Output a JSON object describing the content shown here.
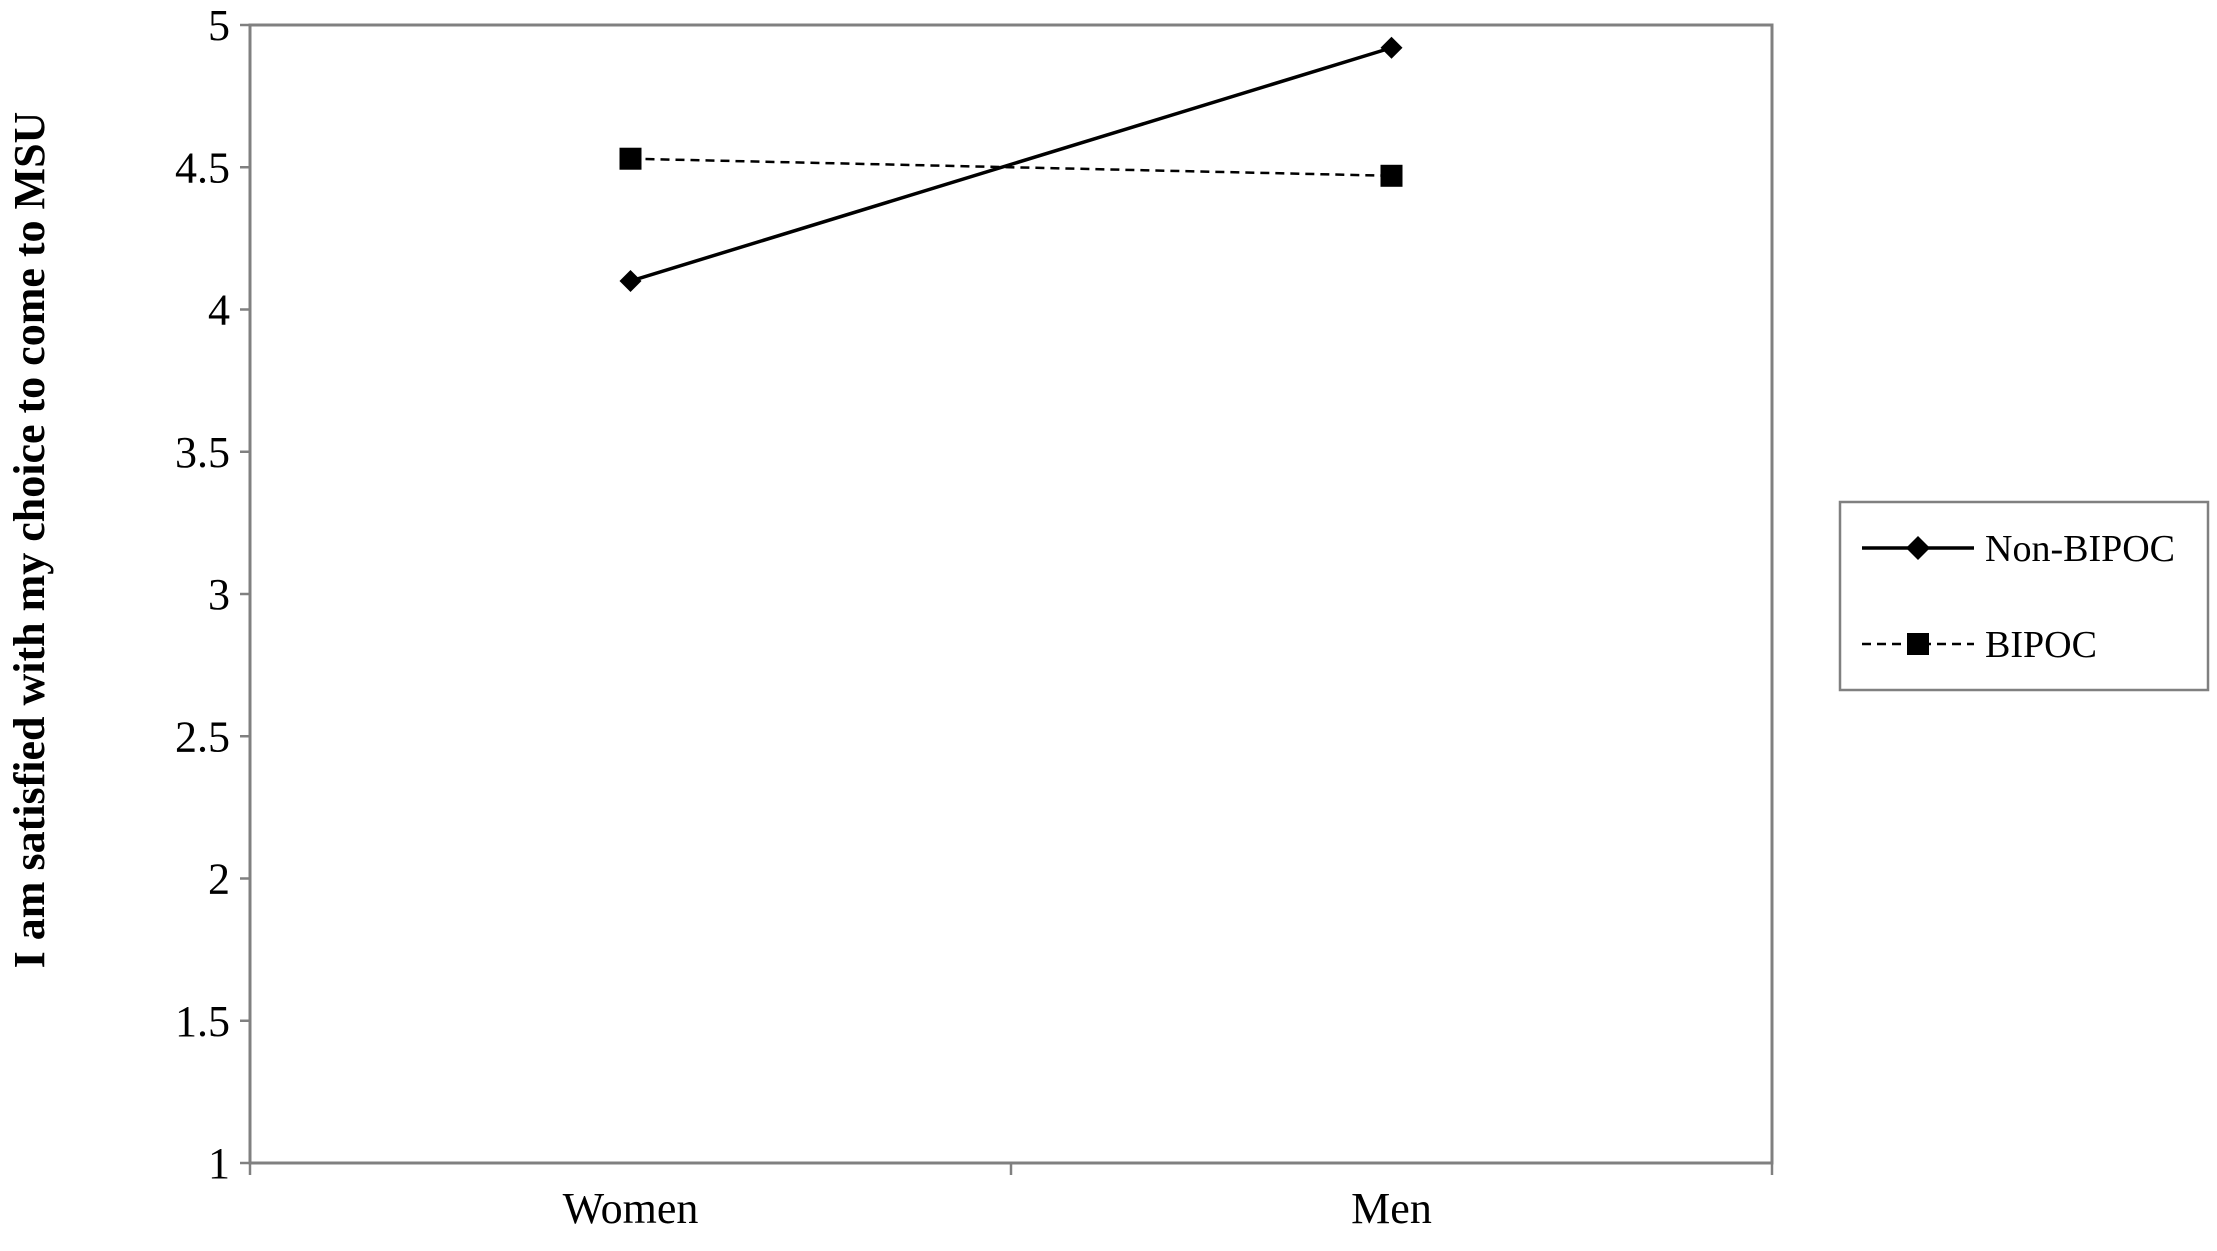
{
  "chart_data": {
    "type": "line",
    "categories": [
      "Women",
      "Men"
    ],
    "series": [
      {
        "name": "Non-BIPOC",
        "values": [
          4.1,
          4.92
        ],
        "line_style": "solid",
        "marker": "diamond",
        "color": "#000000"
      },
      {
        "name": "BIPOC",
        "values": [
          4.53,
          4.47
        ],
        "line_style": "dashed",
        "marker": "square",
        "color": "#000000"
      }
    ],
    "title": "",
    "xlabel": "",
    "ylabel": "I am satisfied with my choice to come to MSU",
    "ylim": [
      1,
      5
    ],
    "yticks": [
      "1",
      "1.5",
      "2",
      "2.5",
      "3",
      "3.5",
      "4",
      "4.5",
      "5"
    ],
    "grid": false,
    "legend_position": "right"
  }
}
